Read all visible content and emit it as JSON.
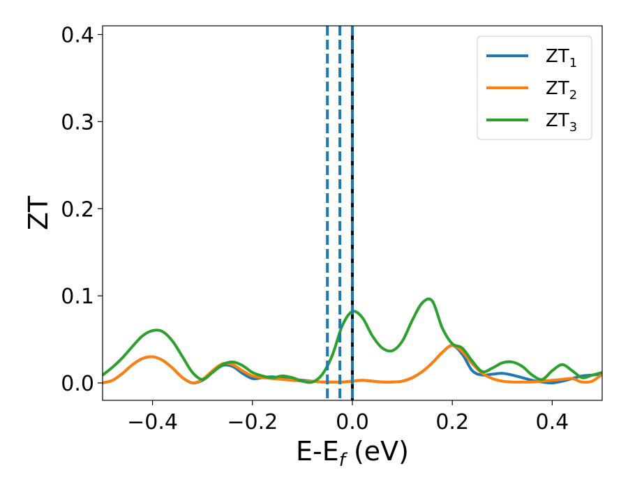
{
  "chart_data": {
    "type": "line",
    "xlabel": "E-E_f (eV)",
    "xlabel_main": "E-E",
    "xlabel_sub": "f",
    "xlabel_unit": " (eV)",
    "ylabel": "ZT",
    "xlim": [
      -0.5,
      0.5
    ],
    "ylim": [
      -0.02,
      0.41
    ],
    "xticks": [
      -0.4,
      -0.2,
      0.0,
      0.2,
      0.4
    ],
    "xtick_labels": [
      "−0.4",
      "−0.2",
      "0.0",
      "0.2",
      "0.4"
    ],
    "yticks": [
      0.0,
      0.1,
      0.2,
      0.3,
      0.4
    ],
    "ytick_labels": [
      "0.0",
      "0.1",
      "0.2",
      "0.3",
      "0.4"
    ],
    "grid": false,
    "legend_position": "top-right",
    "vlines": [
      {
        "x": -0.05,
        "style": "dashed",
        "color": "#1f77b4"
      },
      {
        "x": -0.025,
        "style": "dashed",
        "color": "#1f77b4"
      },
      {
        "x": 0.0,
        "style": "solid",
        "color": "#000000"
      },
      {
        "x": 0.0,
        "style": "dashed",
        "color": "#1f77b4"
      }
    ],
    "series": [
      {
        "name": "ZT1",
        "label_main": "ZT",
        "label_sub": "1",
        "color": "#1f77b4",
        "x": [
          -0.5,
          -0.48,
          -0.46,
          -0.44,
          -0.42,
          -0.4,
          -0.38,
          -0.36,
          -0.34,
          -0.32,
          -0.3,
          -0.28,
          -0.26,
          -0.24,
          -0.22,
          -0.2,
          -0.18,
          -0.16,
          -0.14,
          -0.12,
          -0.1,
          -0.08,
          -0.06,
          -0.04,
          -0.02,
          0.0,
          0.02,
          0.04,
          0.06,
          0.08,
          0.1,
          0.12,
          0.14,
          0.16,
          0.18,
          0.2,
          0.22,
          0.24,
          0.26,
          0.28,
          0.3,
          0.32,
          0.34,
          0.36,
          0.38,
          0.4,
          0.42,
          0.44,
          0.46,
          0.48,
          0.5
        ],
        "y": [
          0.0,
          0.003,
          0.011,
          0.021,
          0.028,
          0.03,
          0.026,
          0.017,
          0.006,
          0.0,
          0.003,
          0.012,
          0.02,
          0.019,
          0.011,
          0.005,
          0.006,
          0.007,
          0.005,
          0.004,
          0.003,
          0.002,
          0.001,
          0.001,
          0.001,
          0.002,
          0.003,
          0.002,
          0.001,
          0.001,
          0.002,
          0.006,
          0.013,
          0.023,
          0.035,
          0.043,
          0.033,
          0.014,
          0.009,
          0.01,
          0.011,
          0.009,
          0.006,
          0.003,
          0.001,
          0.0,
          0.002,
          0.005,
          0.008,
          0.009,
          0.01
        ]
      },
      {
        "name": "ZT2",
        "label_main": "ZT",
        "label_sub": "2",
        "color": "#ff7f0e",
        "x": [
          -0.5,
          -0.48,
          -0.46,
          -0.44,
          -0.42,
          -0.4,
          -0.38,
          -0.36,
          -0.34,
          -0.32,
          -0.3,
          -0.28,
          -0.26,
          -0.24,
          -0.22,
          -0.2,
          -0.18,
          -0.16,
          -0.14,
          -0.12,
          -0.1,
          -0.08,
          -0.06,
          -0.04,
          -0.02,
          0.0,
          0.02,
          0.04,
          0.06,
          0.08,
          0.1,
          0.12,
          0.14,
          0.16,
          0.18,
          0.2,
          0.22,
          0.24,
          0.26,
          0.28,
          0.3,
          0.32,
          0.34,
          0.36,
          0.38,
          0.4,
          0.42,
          0.44,
          0.46,
          0.48,
          0.5
        ],
        "y": [
          0.0,
          0.003,
          0.011,
          0.021,
          0.028,
          0.03,
          0.026,
          0.017,
          0.006,
          0.0,
          0.004,
          0.014,
          0.022,
          0.021,
          0.014,
          0.008,
          0.006,
          0.005,
          0.004,
          0.003,
          0.002,
          0.002,
          0.001,
          0.001,
          0.001,
          0.002,
          0.003,
          0.002,
          0.001,
          0.001,
          0.002,
          0.006,
          0.013,
          0.023,
          0.035,
          0.043,
          0.036,
          0.022,
          0.011,
          0.005,
          0.002,
          0.001,
          0.001,
          0.001,
          0.002,
          0.003,
          0.004,
          0.005,
          0.001,
          0.002,
          0.01
        ]
      },
      {
        "name": "ZT3",
        "label_main": "ZT",
        "label_sub": "3",
        "color": "#2ca02c",
        "x": [
          -0.5,
          -0.48,
          -0.46,
          -0.44,
          -0.42,
          -0.4,
          -0.38,
          -0.36,
          -0.34,
          -0.32,
          -0.3,
          -0.28,
          -0.26,
          -0.24,
          -0.22,
          -0.2,
          -0.18,
          -0.16,
          -0.14,
          -0.12,
          -0.1,
          -0.08,
          -0.06,
          -0.04,
          -0.02,
          0.0,
          0.02,
          0.04,
          0.06,
          0.08,
          0.1,
          0.12,
          0.14,
          0.16,
          0.18,
          0.2,
          0.22,
          0.24,
          0.26,
          0.28,
          0.3,
          0.32,
          0.34,
          0.36,
          0.38,
          0.4,
          0.42,
          0.44,
          0.46,
          0.48,
          0.5
        ],
        "y": [
          0.009,
          0.018,
          0.029,
          0.042,
          0.054,
          0.06,
          0.059,
          0.048,
          0.03,
          0.012,
          0.004,
          0.012,
          0.021,
          0.024,
          0.02,
          0.012,
          0.008,
          0.006,
          0.008,
          0.006,
          0.002,
          0.001,
          0.01,
          0.032,
          0.066,
          0.082,
          0.075,
          0.054,
          0.04,
          0.037,
          0.048,
          0.072,
          0.092,
          0.094,
          0.063,
          0.045,
          0.04,
          0.025,
          0.013,
          0.017,
          0.023,
          0.024,
          0.019,
          0.009,
          0.004,
          0.014,
          0.021,
          0.014,
          0.006,
          0.009,
          0.012
        ]
      }
    ]
  }
}
